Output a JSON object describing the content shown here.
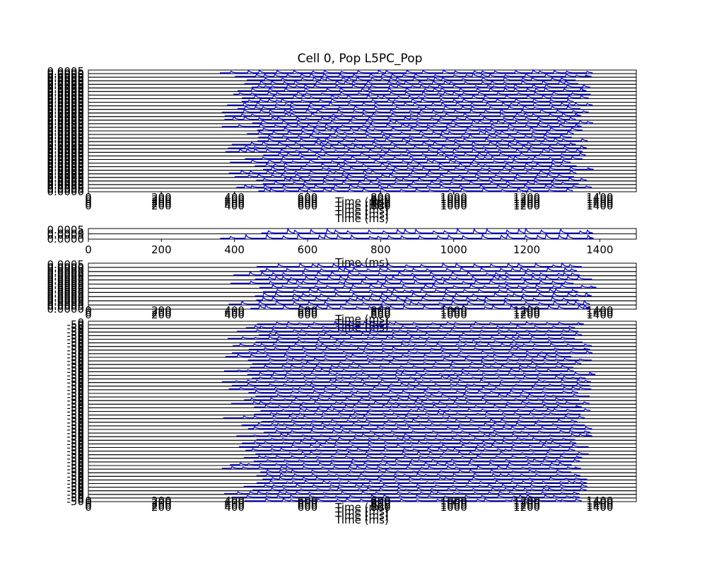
{
  "chart_data": {
    "type": "line",
    "title": "Cell 0, Pop L5PC_Pop",
    "series_color": "#0000ff",
    "xlabel": "Time (ms)",
    "xlim": [
      0,
      1500
    ],
    "x_ticks": [
      "0",
      "200",
      "400",
      "600",
      "800",
      "1000",
      "1200",
      "1400"
    ],
    "y_ticks": [
      "0.0000",
      "0.0005"
    ],
    "v_ticks": [
      "-50",
      "0"
    ],
    "panels": [
      {
        "id": "group-1",
        "rows": 34,
        "kind": "current",
        "xlabel_repeat": 5
      },
      {
        "id": "group-2",
        "rows": 2,
        "kind": "current",
        "xlabel_repeat": 1
      },
      {
        "id": "group-3",
        "rows": 11,
        "kind": "current",
        "xlabel_repeat": 3
      },
      {
        "id": "group-4",
        "rows": 50,
        "kind": "voltage",
        "xlabel_repeat": 4
      }
    ],
    "grid": false
  }
}
